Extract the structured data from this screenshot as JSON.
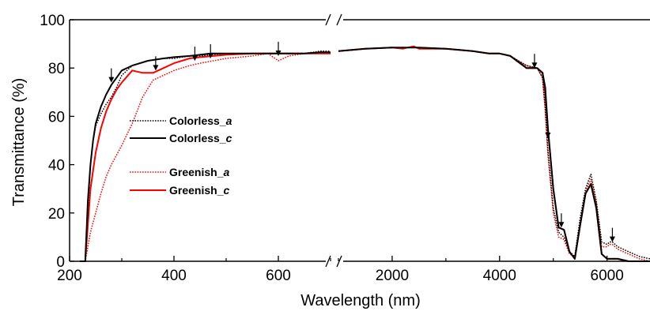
{
  "chart_data": {
    "type": "line",
    "xlabel": "Wavelength (nm)",
    "ylabel": "Transmittance (%)",
    "ylim": [
      0,
      100
    ],
    "yticks": [
      "0",
      "20",
      "40",
      "60",
      "80",
      "100"
    ],
    "x_axis_break": {
      "left_segment_xlim": [
        200,
        700
      ],
      "right_segment_xlim": [
        1000,
        6800
      ]
    },
    "xticks_left": [
      "200",
      "400",
      "600"
    ],
    "xticks_right": [
      "2000",
      "4000",
      "6000"
    ],
    "legend_placement": "center-left",
    "grid": false,
    "series": [
      {
        "name": "Colorless_a",
        "color": "#000000",
        "style": "dotted",
        "x": [
          220,
          230,
          236,
          240,
          245,
          250,
          260,
          270,
          280,
          290,
          300,
          320,
          350,
          380,
          400,
          430,
          450,
          470,
          500,
          550,
          600,
          650,
          680,
          700,
          1000,
          1500,
          2000,
          2500,
          3000,
          3500,
          3800,
          4000,
          4200,
          4500,
          4700,
          4800,
          4850,
          4900,
          5000,
          5100,
          5200,
          5300,
          5400,
          5500,
          5600,
          5700,
          5800,
          5900,
          6000,
          6050,
          6100,
          6200,
          6400,
          6600,
          6800
        ],
        "y": [
          0,
          0,
          25,
          40,
          50,
          56,
          61,
          65,
          68,
          72,
          77,
          81,
          83,
          84,
          84,
          85,
          85,
          85.5,
          86,
          86,
          86,
          86,
          87,
          87,
          87,
          88,
          88.5,
          88.5,
          88,
          87,
          86,
          86,
          85,
          81,
          80,
          76,
          64,
          46,
          22,
          12,
          10,
          4,
          2,
          18,
          30,
          36,
          25,
          8,
          7,
          8,
          8,
          6,
          4,
          2,
          1
        ]
      },
      {
        "name": "Colorless_c",
        "color": "#000000",
        "style": "solid",
        "x": [
          220,
          230,
          235,
          240,
          245,
          250,
          260,
          270,
          280,
          290,
          300,
          320,
          350,
          380,
          400,
          430,
          450,
          470,
          500,
          550,
          600,
          650,
          680,
          700,
          1000,
          1500,
          2000,
          2500,
          3000,
          3500,
          3800,
          4000,
          4200,
          4500,
          4700,
          4800,
          4850,
          4900,
          5000,
          5100,
          5200,
          5300,
          5400,
          5500,
          5600,
          5700,
          5800,
          5900,
          6000,
          6050,
          6100,
          6200,
          6400,
          6600,
          6800
        ],
        "y": [
          0,
          0,
          25,
          40,
          50,
          57,
          64,
          69,
          73,
          76,
          79,
          81,
          83,
          84,
          84.5,
          85,
          85.5,
          86,
          86,
          86,
          86,
          86,
          86.5,
          86.5,
          87,
          88,
          88.5,
          88.5,
          88,
          87,
          86,
          86,
          85,
          80,
          80,
          78,
          72,
          55,
          30,
          14,
          13,
          4,
          1,
          15,
          28,
          32,
          22,
          3,
          1,
          1,
          1,
          1,
          0,
          0,
          0
        ]
      },
      {
        "name": "Greenish_a",
        "color": "#ff0000",
        "style": "dotted",
        "x": [
          220,
          230,
          240,
          250,
          260,
          270,
          280,
          290,
          300,
          320,
          340,
          360,
          380,
          400,
          430,
          450,
          500,
          550,
          580,
          600,
          620,
          650,
          680,
          700,
          1000,
          1500,
          2000,
          2200,
          2400,
          2500,
          3000,
          3500,
          3800,
          4000,
          4200,
          4500,
          4700,
          4800,
          4850,
          4900,
          5000,
          5100,
          5200,
          5300,
          5400,
          5500,
          5600,
          5700,
          5800,
          5900,
          6000,
          6050,
          6100,
          6200,
          6400,
          6600,
          6800
        ],
        "y": [
          0,
          0,
          12,
          20,
          28,
          35,
          40,
          44,
          48,
          57,
          68,
          75,
          77,
          79,
          81,
          82,
          84,
          85,
          86,
          83,
          85,
          86,
          86,
          86,
          87,
          88,
          88.5,
          88,
          89,
          88,
          88,
          87,
          86,
          86,
          85,
          81,
          80,
          76,
          62,
          44,
          20,
          10,
          9,
          3,
          2,
          16,
          29,
          34,
          24,
          6,
          6,
          7,
          7,
          5,
          3,
          1,
          0
        ]
      },
      {
        "name": "Greenish_c",
        "color": "#ff0000",
        "style": "solid",
        "x": [
          220,
          230,
          240,
          250,
          260,
          270,
          280,
          290,
          300,
          320,
          340,
          360,
          380,
          400,
          430,
          450,
          500,
          550,
          600,
          650,
          680,
          700,
          1000,
          1500,
          2000,
          2200,
          2400,
          2500,
          3000,
          3500,
          3800,
          4000,
          4200,
          4500,
          4700,
          4800,
          4850,
          4900,
          5000,
          5100,
          5200,
          5300,
          5400,
          5500,
          5600,
          5700,
          5800,
          5900,
          6000,
          6050,
          6100,
          6200,
          6400,
          6600,
          6800
        ],
        "y": [
          0,
          0,
          30,
          45,
          55,
          62,
          67,
          71,
          74,
          79,
          78,
          78,
          80,
          82,
          84,
          84.5,
          85.5,
          86,
          86,
          86,
          86,
          86,
          87,
          88,
          88.5,
          88,
          89,
          88,
          88,
          87,
          86,
          86,
          85,
          80,
          80,
          78,
          70,
          55,
          30,
          14,
          13,
          4,
          1,
          15,
          28,
          32,
          22,
          3,
          1,
          1,
          1,
          1,
          0,
          0,
          0
        ]
      }
    ],
    "annotations": {
      "type": "down-arrow",
      "points": [
        {
          "x": 280,
          "y": 73
        },
        {
          "x": 365,
          "y": 78
        },
        {
          "x": 440,
          "y": 82
        },
        {
          "x": 470,
          "y": 83
        },
        {
          "x": 600,
          "y": 84
        },
        {
          "x": 4650,
          "y": 79
        },
        {
          "x": 4900,
          "y": 50
        },
        {
          "x": 5150,
          "y": 13
        },
        {
          "x": 6100,
          "y": 7
        }
      ]
    }
  }
}
